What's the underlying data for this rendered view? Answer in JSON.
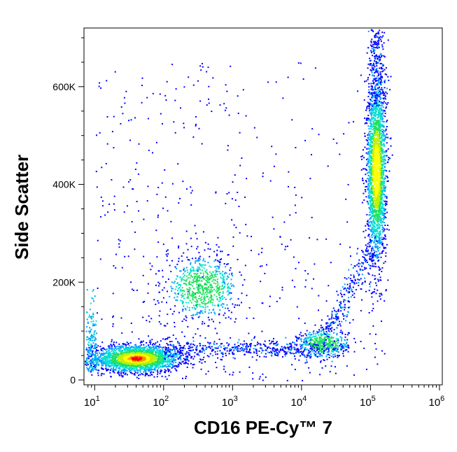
{
  "chart_data": {
    "type": "scatter",
    "title": "",
    "xlabel": "CD16 PE-Cy™ 7",
    "ylabel": "Side Scatter",
    "xscale": "log",
    "yscale": "linear",
    "xlim": [
      7,
      1100000
    ],
    "ylim": [
      -10000,
      720000
    ],
    "grid": false,
    "legend": "none",
    "x_ticks": [
      {
        "label": "10",
        "sup": "1",
        "value": 10
      },
      {
        "label": "10",
        "sup": "2",
        "value": 100
      },
      {
        "label": "10",
        "sup": "3",
        "value": 1000
      },
      {
        "label": "10",
        "sup": "4",
        "value": 10000
      },
      {
        "label": "10",
        "sup": "5",
        "value": 100000
      },
      {
        "label": "10",
        "sup": "6",
        "value": 1000000
      }
    ],
    "y_ticks": [
      {
        "label": "0",
        "value": 0
      },
      {
        "label": "200K",
        "value": 200000
      },
      {
        "label": "400K",
        "value": 400000
      },
      {
        "label": "600K",
        "value": 600000
      }
    ],
    "populations": [
      {
        "x": 40,
        "y": 45000,
        "x_spread_decades": 0.32,
        "y_spread": 14000,
        "count": 2300,
        "density_peak": "red"
      },
      {
        "x": 350,
        "y": 190000,
        "x_spread_decades": 0.25,
        "y_spread": 30000,
        "count": 700,
        "density_peak": "green"
      },
      {
        "x": 20000,
        "y": 75000,
        "x_spread_decades": 0.18,
        "y_spread": 14000,
        "count": 450,
        "density_peak": "green"
      },
      {
        "x": 120000,
        "y": 430000,
        "x_spread_decades": 0.07,
        "y_spread": 90000,
        "count": 2200,
        "density_peak": "yellow"
      }
    ],
    "colormap": [
      "#0000ff",
      "#00a0ff",
      "#00e0d0",
      "#20e060",
      "#c0f000",
      "#ffff00",
      "#ff9000",
      "#ff0000"
    ]
  }
}
